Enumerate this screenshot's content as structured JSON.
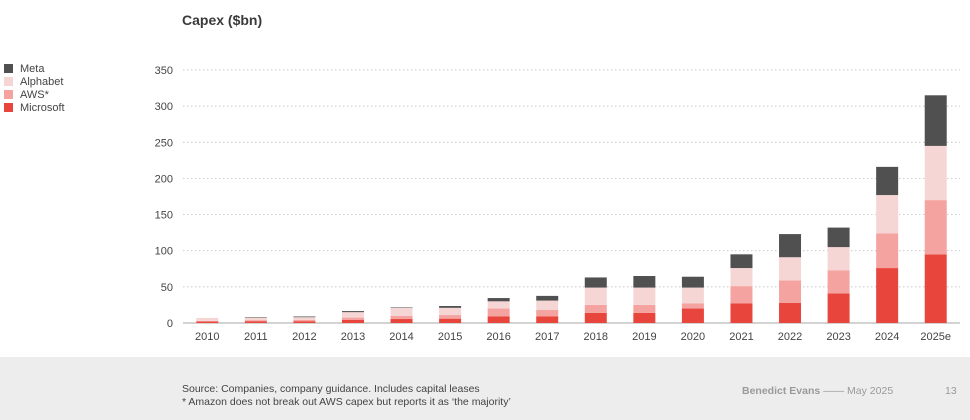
{
  "chart_data": {
    "type": "bar",
    "stacked": true,
    "title": "Capex ($bn)",
    "categories": [
      "2010",
      "2011",
      "2012",
      "2013",
      "2014",
      "2015",
      "2016",
      "2017",
      "2018",
      "2019",
      "2020",
      "2021",
      "2022",
      "2023",
      "2024",
      "2025e"
    ],
    "ylim": [
      0,
      350
    ],
    "yticks": [
      0,
      50,
      100,
      150,
      200,
      250,
      300,
      350
    ],
    "grid": true,
    "legend_position": "left",
    "series": [
      {
        "name": "Microsoft",
        "color": "#e8453c",
        "values": [
          2,
          2.5,
          2.5,
          4.5,
          5.5,
          6,
          9,
          9,
          14,
          14,
          20,
          27,
          28,
          41,
          76,
          95
        ]
      },
      {
        "name": "AWS*",
        "color": "#f4a3a0",
        "values": [
          1,
          1.5,
          2,
          3,
          4.5,
          5,
          11,
          9,
          11,
          11,
          7,
          24,
          31,
          32,
          48,
          75
        ]
      },
      {
        "name": "Alphabet",
        "color": "#f5d6d4",
        "values": [
          4,
          3.5,
          3.5,
          7.5,
          11,
          10,
          10,
          13,
          24,
          24,
          22,
          25,
          32,
          32,
          53,
          75
        ]
      },
      {
        "name": "Meta",
        "color": "#505050",
        "values": [
          0,
          0.5,
          1,
          1.5,
          0.5,
          2.5,
          4.5,
          6.5,
          14,
          16,
          15,
          19,
          32,
          27,
          39,
          70
        ]
      }
    ]
  },
  "legend": {
    "items": [
      {
        "label": "Meta",
        "color": "#505050"
      },
      {
        "label": "Alphabet",
        "color": "#f5d6d4"
      },
      {
        "label": "AWS*",
        "color": "#f4a3a0"
      },
      {
        "label": "Microsoft",
        "color": "#e8453c"
      }
    ]
  },
  "footer": {
    "source_line1": "Source: Companies, company guidance. Includes capital leases",
    "source_line2": "* Amazon does not break out AWS capex but reports it as ‘the majority’",
    "brand": "Benedict Evans",
    "separator": "——",
    "date": "May 2025",
    "page_number": "13"
  }
}
